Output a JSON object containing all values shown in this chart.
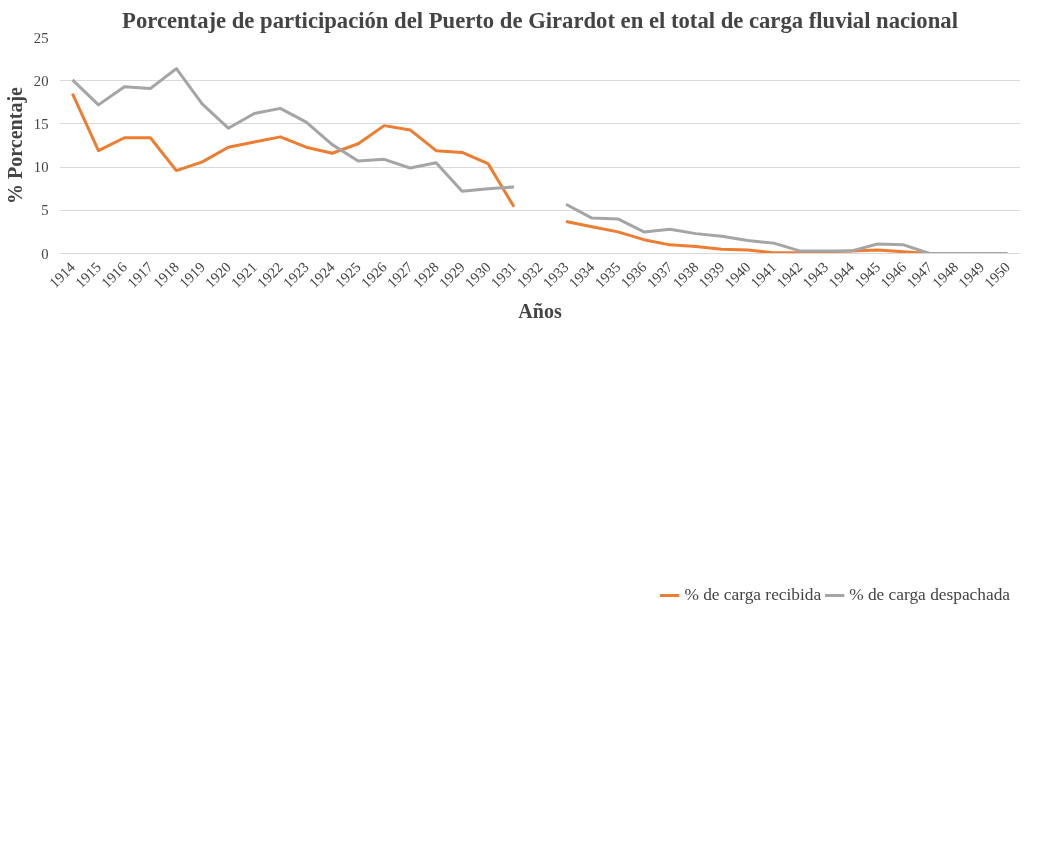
{
  "chart_data": {
    "type": "line",
    "title": "Porcentaje de participación del Puerto de Girardot en el total de carga fluvial nacional",
    "xlabel": "Años",
    "ylabel": "% Porcentaje",
    "categories": [
      "1914",
      "1915",
      "1916",
      "1917",
      "1918",
      "1919",
      "1920",
      "1921",
      "1922",
      "1923",
      "1924",
      "1925",
      "1926",
      "1927",
      "1928",
      "1929",
      "1930",
      "1931",
      "1932",
      "1933",
      "1934",
      "1935",
      "1936",
      "1937",
      "1938",
      "1939",
      "1940",
      "1941",
      "1942",
      "1943",
      "1944",
      "1945",
      "1946",
      "1947",
      "1948",
      "1949",
      "1950"
    ],
    "series": [
      {
        "name": "% de carga recibida",
        "color": "#ed7d31",
        "values": [
          18.5,
          11.9,
          13.4,
          13.4,
          9.6,
          10.6,
          12.3,
          12.9,
          13.5,
          12.3,
          11.6,
          12.7,
          14.8,
          14.3,
          11.9,
          11.7,
          10.4,
          5.4,
          null,
          3.7,
          3.1,
          2.5,
          1.6,
          1.0,
          0.8,
          0.5,
          0.4,
          0.1,
          0.1,
          0.2,
          0.3,
          0.4,
          0.2,
          0,
          null,
          null,
          null
        ]
      },
      {
        "name": "% de carga despachada",
        "color": "#a5a5a5",
        "values": [
          20.1,
          17.2,
          19.3,
          19.1,
          21.4,
          17.3,
          14.5,
          16.2,
          16.8,
          15.2,
          12.6,
          10.7,
          10.9,
          9.9,
          10.5,
          7.2,
          7.5,
          7.7,
          null,
          5.7,
          4.1,
          4.0,
          2.5,
          2.8,
          2.3,
          2.0,
          1.5,
          1.2,
          0.3,
          0.3,
          0.3,
          1.1,
          1.0,
          0,
          0,
          0,
          0
        ]
      }
    ],
    "ylim": [
      0,
      25
    ],
    "yticks": [
      0,
      5,
      10,
      15,
      20,
      25
    ],
    "grid": "y",
    "legend": "bottom",
    "line_style": "solid",
    "marker": "none"
  }
}
